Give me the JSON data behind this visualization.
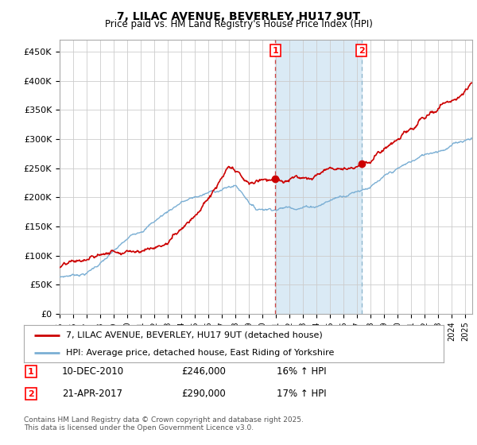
{
  "title": "7, LILAC AVENUE, BEVERLEY, HU17 9UT",
  "subtitle": "Price paid vs. HM Land Registry's House Price Index (HPI)",
  "ylabel_ticks": [
    "£0",
    "£50K",
    "£100K",
    "£150K",
    "£200K",
    "£250K",
    "£300K",
    "£350K",
    "£400K",
    "£450K"
  ],
  "ytick_vals": [
    0,
    50000,
    100000,
    150000,
    200000,
    250000,
    300000,
    350000,
    400000,
    450000
  ],
  "ylim": [
    0,
    470000
  ],
  "hpi_color": "#7bafd4",
  "price_color": "#cc0000",
  "sale1_date": 2010.94,
  "sale1_price": 246000,
  "sale1_hpi_pct": "16%",
  "sale1_date_str": "10-DEC-2010",
  "sale2_date": 2017.31,
  "sale2_price": 290000,
  "sale2_hpi_pct": "17%",
  "sale2_date_str": "21-APR-2017",
  "legend_line1": "7, LILAC AVENUE, BEVERLEY, HU17 9UT (detached house)",
  "legend_line2": "HPI: Average price, detached house, East Riding of Yorkshire",
  "footnote": "Contains HM Land Registry data © Crown copyright and database right 2025.\nThis data is licensed under the Open Government Licence v3.0.",
  "background_color": "#ffffff",
  "shaded_region_color": "#daeaf5",
  "grid_color": "#cccccc",
  "xstart": 1995,
  "xend": 2025.5
}
